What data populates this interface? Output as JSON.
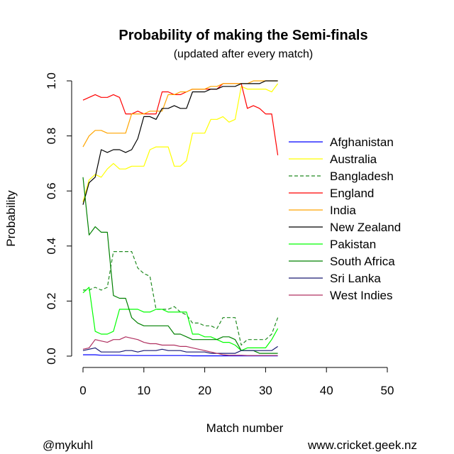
{
  "chart_data": {
    "type": "line",
    "title": "Probability of making the Semi-finals",
    "subtitle": "(updated after every match)",
    "xlabel": "Match number",
    "ylabel": "Probability",
    "xlim": [
      0,
      50
    ],
    "ylim": [
      0,
      1
    ],
    "x_ticks": [
      "0",
      "10",
      "20",
      "30",
      "40",
      "50"
    ],
    "y_ticks": [
      "0.0",
      "0.2",
      "0.4",
      "0.6",
      "0.8",
      "1.0"
    ],
    "legend_position": "right",
    "x": [
      0,
      1,
      2,
      3,
      4,
      5,
      6,
      7,
      8,
      9,
      10,
      11,
      12,
      13,
      14,
      15,
      16,
      17,
      18,
      19,
      20,
      21,
      22,
      23,
      24,
      25,
      26,
      27,
      28,
      29,
      30,
      31,
      32
    ],
    "series": [
      {
        "name": "Afghanistan",
        "color": "#0000ff",
        "dash": "solid",
        "values": [
          0.005,
          0.005,
          0.005,
          0.003,
          0.003,
          0.003,
          0.003,
          0.002,
          0.002,
          0.002,
          0.002,
          0.002,
          0.002,
          0.002,
          0.002,
          0.002,
          0.002,
          0.002,
          0.001,
          0.001,
          0.001,
          0.001,
          0.001,
          0.001,
          0.001,
          0.001,
          0.001,
          0.001,
          0.001,
          0.001,
          0.001,
          0.001,
          0.001
        ]
      },
      {
        "name": "Australia",
        "color": "#ffff00",
        "dash": "solid",
        "values": [
          0.56,
          0.64,
          0.66,
          0.65,
          0.68,
          0.7,
          0.68,
          0.68,
          0.69,
          0.69,
          0.69,
          0.75,
          0.76,
          0.76,
          0.76,
          0.69,
          0.69,
          0.71,
          0.81,
          0.81,
          0.81,
          0.86,
          0.86,
          0.87,
          0.85,
          0.86,
          0.98,
          0.97,
          0.97,
          0.97,
          0.97,
          0.96,
          0.99
        ]
      },
      {
        "name": "Bangladesh",
        "color": "#228b22",
        "dash": "dashed",
        "values": [
          0.24,
          0.24,
          0.25,
          0.24,
          0.25,
          0.38,
          0.38,
          0.38,
          0.38,
          0.32,
          0.3,
          0.29,
          0.17,
          0.17,
          0.17,
          0.18,
          0.16,
          0.15,
          0.12,
          0.12,
          0.11,
          0.11,
          0.1,
          0.14,
          0.14,
          0.14,
          0.04,
          0.06,
          0.06,
          0.06,
          0.06,
          0.08,
          0.14
        ]
      },
      {
        "name": "England",
        "color": "#ff0000",
        "dash": "solid",
        "values": [
          0.93,
          0.94,
          0.95,
          0.94,
          0.94,
          0.95,
          0.94,
          0.88,
          0.88,
          0.89,
          0.88,
          0.88,
          0.88,
          0.96,
          0.96,
          0.95,
          0.95,
          0.96,
          0.97,
          0.97,
          0.97,
          0.97,
          0.97,
          0.99,
          0.99,
          0.99,
          0.99,
          0.9,
          0.91,
          0.9,
          0.88,
          0.88,
          0.73
        ]
      },
      {
        "name": "India",
        "color": "#ffa500",
        "dash": "solid",
        "values": [
          0.76,
          0.8,
          0.82,
          0.82,
          0.81,
          0.81,
          0.81,
          0.81,
          0.88,
          0.88,
          0.88,
          0.89,
          0.89,
          0.89,
          0.95,
          0.95,
          0.96,
          0.96,
          0.97,
          0.97,
          0.97,
          0.98,
          0.98,
          0.99,
          0.99,
          0.99,
          0.99,
          0.99,
          1.0,
          1.0,
          1.0,
          1.0,
          1.0
        ]
      },
      {
        "name": "New Zealand",
        "color": "#000000",
        "dash": "solid",
        "values": [
          0.55,
          0.63,
          0.65,
          0.75,
          0.74,
          0.75,
          0.75,
          0.74,
          0.75,
          0.79,
          0.87,
          0.87,
          0.86,
          0.9,
          0.9,
          0.91,
          0.9,
          0.9,
          0.96,
          0.96,
          0.96,
          0.97,
          0.97,
          0.98,
          0.98,
          0.98,
          0.99,
          0.99,
          0.99,
          0.99,
          1.0,
          1.0,
          1.0
        ]
      },
      {
        "name": "Pakistan",
        "color": "#00ff00",
        "dash": "solid",
        "values": [
          0.23,
          0.25,
          0.09,
          0.08,
          0.08,
          0.09,
          0.17,
          0.17,
          0.17,
          0.17,
          0.16,
          0.16,
          0.17,
          0.17,
          0.16,
          0.16,
          0.16,
          0.16,
          0.08,
          0.08,
          0.07,
          0.07,
          0.06,
          0.05,
          0.05,
          0.04,
          0.02,
          0.03,
          0.03,
          0.03,
          0.03,
          0.06,
          0.1
        ]
      },
      {
        "name": "South Africa",
        "color": "#008000",
        "dash": "solid",
        "values": [
          0.65,
          0.44,
          0.47,
          0.45,
          0.45,
          0.22,
          0.21,
          0.21,
          0.14,
          0.12,
          0.11,
          0.11,
          0.11,
          0.11,
          0.11,
          0.08,
          0.08,
          0.07,
          0.06,
          0.06,
          0.06,
          0.06,
          0.06,
          0.07,
          0.07,
          0.06,
          0.02,
          0.02,
          0.02,
          0.01,
          0.01,
          0.01,
          0.01
        ]
      },
      {
        "name": "Sri Lanka",
        "color": "#191970",
        "dash": "solid",
        "values": [
          0.02,
          0.025,
          0.03,
          0.015,
          0.015,
          0.015,
          0.015,
          0.02,
          0.02,
          0.015,
          0.02,
          0.02,
          0.02,
          0.025,
          0.02,
          0.02,
          0.02,
          0.015,
          0.015,
          0.015,
          0.015,
          0.01,
          0.01,
          0.01,
          0.01,
          0.01,
          0.02,
          0.02,
          0.02,
          0.02,
          0.02,
          0.02,
          0.035
        ]
      },
      {
        "name": "West Indies",
        "color": "#b03060",
        "dash": "solid",
        "values": [
          0.025,
          0.03,
          0.06,
          0.055,
          0.05,
          0.06,
          0.06,
          0.07,
          0.065,
          0.06,
          0.05,
          0.045,
          0.045,
          0.04,
          0.04,
          0.04,
          0.035,
          0.035,
          0.03,
          0.025,
          0.02,
          0.015,
          0.01,
          0.005,
          0.003,
          0.003,
          0.003,
          0.002,
          0.002,
          0.002,
          0.002,
          0.002,
          0.002
        ]
      }
    ]
  },
  "footer": {
    "left": "@mykuhl",
    "right": "www.cricket.geek.nz"
  }
}
